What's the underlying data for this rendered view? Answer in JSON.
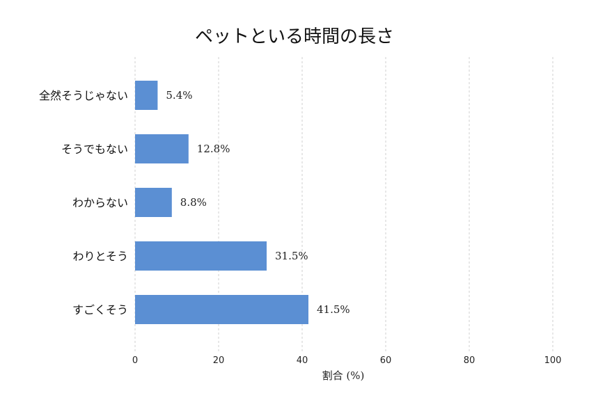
{
  "chart_data": {
    "type": "bar",
    "orientation": "horizontal",
    "title": "ペットといる時間の長さ",
    "xlabel": "割合 (%)",
    "ylabel": "",
    "xlim": [
      0,
      100
    ],
    "xticks": [
      0,
      20,
      40,
      60,
      80,
      100
    ],
    "grid": "vertical-dashed",
    "bar_color": "#5b8fd3",
    "categories": [
      "全然そうじゃない",
      "そうでもない",
      "わからない",
      "わりとそう",
      "すごくそう"
    ],
    "values": [
      5.4,
      12.8,
      8.8,
      31.5,
      41.5
    ],
    "value_labels": [
      "5.4%",
      "12.8%",
      "8.8%",
      "31.5%",
      "41.5%"
    ]
  }
}
